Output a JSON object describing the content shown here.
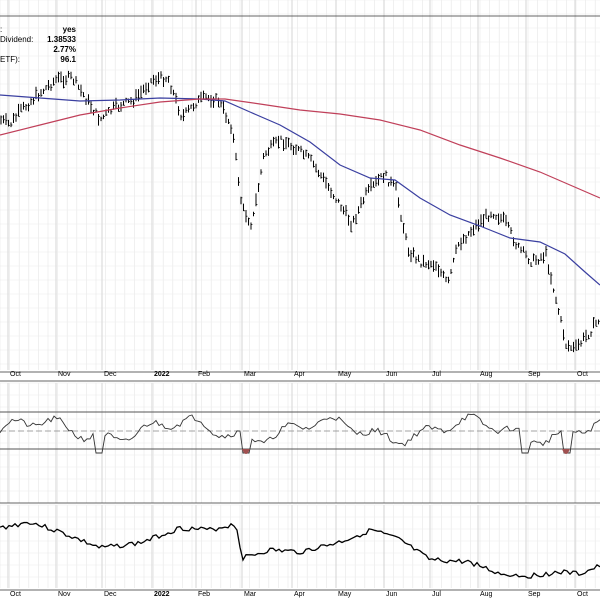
{
  "info_panel": [
    {
      "label": ":",
      "value": "yes"
    },
    {
      "label": "Dividend:",
      "value": "1.38533"
    },
    {
      "label": "",
      "value": "2.77%"
    },
    {
      "label": "ETF):",
      "value": "96.1"
    }
  ],
  "chart_data": [
    {
      "type": "ohlc",
      "panel": "price",
      "x_tick_labels": [
        "Oct",
        "Nov",
        "Dec",
        "2022",
        "Feb",
        "Mar",
        "Apr",
        "May",
        "Jun",
        "Jul",
        "Aug",
        "Sep",
        "Oct"
      ],
      "grid": true,
      "series": [
        {
          "name": "",
          "kind": "price-bars",
          "color": "#000000"
        },
        {
          "name": "",
          "kind": "ma-short",
          "color": "#3a3fa0"
        },
        {
          "name": "",
          "kind": "ma-long",
          "color": "#c0405a"
        }
      ]
    },
    {
      "type": "line",
      "panel": "oscillator",
      "grid": true,
      "reference_lines": [
        "upper",
        "middle",
        "lower"
      ],
      "fill_color_oversold": "#a05050"
    },
    {
      "type": "line",
      "panel": "lower",
      "x_tick_labels": [
        "Oct",
        "Nov",
        "Dec",
        "2022",
        "Feb",
        "Mar",
        "Apr",
        "May",
        "Jun",
        "Jul",
        "Aug",
        "Sep",
        "Oct"
      ],
      "grid": true,
      "color": "#000000"
    }
  ]
}
